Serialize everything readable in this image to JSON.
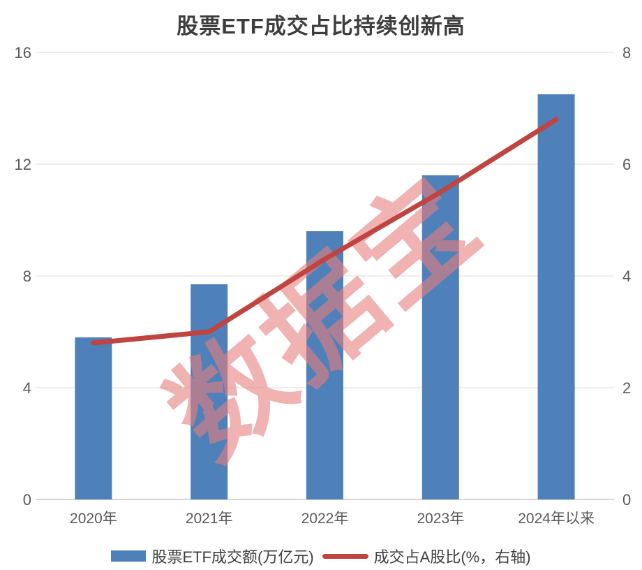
{
  "title": "股票ETF成交占比持续创新高",
  "watermark": {
    "text": "数据宝",
    "color": "#e87f7f",
    "opacity": 0.6,
    "rotation_deg": -40
  },
  "colors": {
    "bar": "#4e81ba",
    "line": "#c0443f",
    "grid": "#e3e3e3",
    "baseline": "#c9c9c9",
    "tick_text": "#595959",
    "title_text": "#3d3d3d",
    "legend_text": "#404040",
    "background": "#ffffff"
  },
  "chart_data": {
    "type": "combo",
    "title": "股票ETF成交占比持续创新高",
    "categories": [
      "2020年",
      "2021年",
      "2022年",
      "2023年",
      "2024年以来"
    ],
    "series": [
      {
        "name": "股票ETF成交额(万亿元)",
        "type": "bar",
        "axis": "left",
        "color": "#4e81ba",
        "values": [
          5.8,
          7.7,
          9.6,
          11.6,
          14.5
        ]
      },
      {
        "name": "成交占A股比(%，右轴)",
        "type": "line",
        "axis": "right",
        "color": "#c0443f",
        "values": [
          2.8,
          3.0,
          4.3,
          5.5,
          6.8
        ]
      }
    ],
    "left_axis": {
      "ticks": [
        0,
        4,
        8,
        12,
        16
      ],
      "range": [
        0,
        16
      ],
      "label": ""
    },
    "right_axis": {
      "ticks": [
        0,
        2,
        4,
        6,
        8
      ],
      "range": [
        0,
        8
      ],
      "label": ""
    },
    "grid": true,
    "legend_position": "bottom"
  }
}
